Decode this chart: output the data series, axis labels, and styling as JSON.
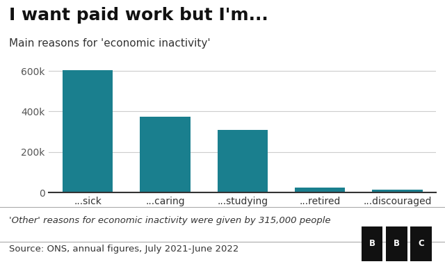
{
  "title": "I want paid work but I'm...",
  "subtitle": "Main reasons for 'economic inactivity'",
  "categories": [
    "...sick",
    "...caring",
    "...studying",
    "...retired",
    "...discouraged"
  ],
  "values": [
    605000,
    375000,
    310000,
    27000,
    14000
  ],
  "bar_color": "#1a7f8e",
  "ylim": [
    0,
    650000
  ],
  "yticks": [
    0,
    200000,
    400000,
    600000
  ],
  "ytick_labels": [
    "0",
    "200k",
    "400k",
    "600k"
  ],
  "footnote": "'Other' reasons for economic inactivity were given by 315,000 people",
  "source": "Source: ONS, annual figures, July 2021-June 2022",
  "bbc_letters": [
    "B",
    "B",
    "C"
  ],
  "background_color": "#ffffff",
  "footer_background": "#dddddd",
  "title_fontsize": 18,
  "subtitle_fontsize": 11,
  "tick_fontsize": 10,
  "footer_fontsize": 9.5
}
